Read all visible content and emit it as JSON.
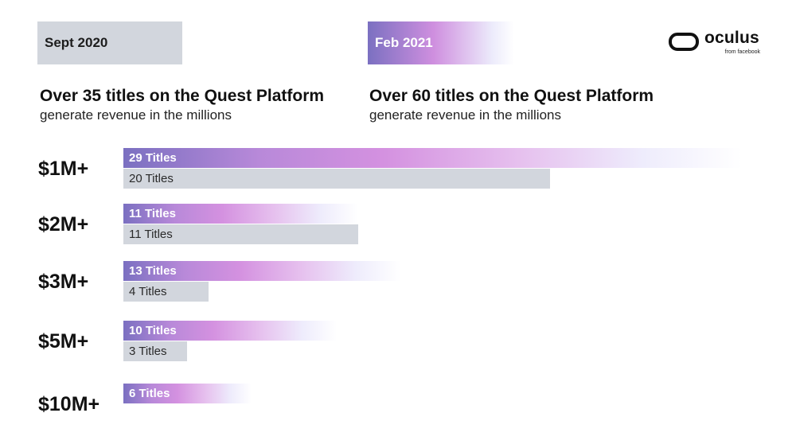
{
  "legend": {
    "sept_label": "Sept 2020",
    "feb_label": "Feb 2021"
  },
  "headlines": {
    "sept": {
      "title": "Over 35 titles on the Quest Platform",
      "subtitle": "generate revenue in the millions"
    },
    "feb": {
      "title": "Over 60 titles on the Quest Platform",
      "subtitle": "generate revenue in the millions"
    }
  },
  "logo": {
    "wordmark": "oculus",
    "byline": "from facebook"
  },
  "colors": {
    "sept_bar": "#d2d6dd",
    "feb_gradient_start": "#7b70c1",
    "feb_gradient_mid": "#d491e0"
  },
  "chart_data": {
    "type": "bar",
    "orientation": "horizontal",
    "categories": [
      "$1M+",
      "$2M+",
      "$3M+",
      "$5M+",
      "$10M+"
    ],
    "series": [
      {
        "name": "Feb 2021",
        "values": [
          29,
          11,
          13,
          10,
          6
        ],
        "labels": [
          "29 Titles",
          "11 Titles",
          "13 Titles",
          "10 Titles",
          "6 Titles"
        ]
      },
      {
        "name": "Sept 2020",
        "values": [
          20,
          11,
          4,
          3,
          null
        ],
        "labels": [
          "20 Titles",
          "11 Titles",
          "4 Titles",
          "3 Titles",
          null
        ]
      }
    ],
    "legend_placement": "top",
    "grid": false
  }
}
